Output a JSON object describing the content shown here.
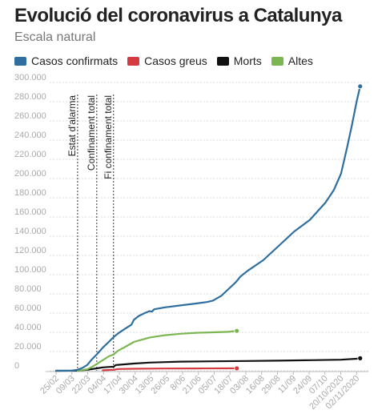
{
  "title": "Evolució del coronavirus a Catalunya",
  "subtitle": "Escala natural",
  "colors": {
    "confirmats": "#2e6fa0",
    "greus": "#d43a3f",
    "morts": "#111111",
    "altes": "#7bb652",
    "grid": "#dddddd",
    "axis": "#bbbbbb"
  },
  "chart_data": {
    "type": "line",
    "title": "Evolució del coronavirus a Catalunya",
    "subtitle": "Escala natural",
    "ylim": [
      0,
      300000
    ],
    "grid": true,
    "legend_position": "top",
    "y_ticks": [
      "0",
      "20.000",
      "40.000",
      "60.000",
      "80.000",
      "100.000",
      "120.000",
      "140.000",
      "160.000",
      "180.000",
      "200.000",
      "220.000",
      "240.000",
      "260.000",
      "280.000",
      "300.000"
    ],
    "x_ticks": [
      "25/02",
      "09/03",
      "22/03",
      "04/04",
      "17/04",
      "30/04",
      "13/05",
      "26/05",
      "8/06",
      "21/06",
      "05/07",
      "18/07",
      "03/08",
      "16/08",
      "29/08",
      "11/09",
      "24/09",
      "07/10",
      "20/10/2020",
      "02/11/2020"
    ],
    "annotations": [
      {
        "label": "Estat d'alarma",
        "x": "14/03"
      },
      {
        "label": "Confinament total",
        "x": "30/03"
      },
      {
        "label": "Fi confinament total",
        "x": "13/04"
      }
    ],
    "series": [
      {
        "name": "Casos confirmats",
        "color": "#2e6fa0",
        "points": [
          [
            "25/02",
            0
          ],
          [
            "09/03",
            100
          ],
          [
            "14/03",
            1000
          ],
          [
            "18/03",
            3000
          ],
          [
            "22/03",
            6000
          ],
          [
            "26/03",
            12000
          ],
          [
            "30/03",
            17000
          ],
          [
            "04/04",
            24000
          ],
          [
            "09/04",
            30000
          ],
          [
            "13/04",
            35000
          ],
          [
            "17/04",
            39000
          ],
          [
            "23/04",
            44000
          ],
          [
            "28/04",
            48000
          ],
          [
            "30/04",
            53000
          ],
          [
            "04/05",
            57000
          ],
          [
            "09/05",
            60000
          ],
          [
            "13/05",
            62000
          ],
          [
            "15/05",
            61500
          ],
          [
            "17/05",
            64000
          ],
          [
            "26/05",
            66000
          ],
          [
            "08/06",
            68000
          ],
          [
            "21/06",
            70000
          ],
          [
            "30/06",
            71500
          ],
          [
            "05/07",
            73000
          ],
          [
            "12/07",
            78000
          ],
          [
            "18/07",
            85000
          ],
          [
            "24/07",
            92000
          ],
          [
            "28/07",
            98000
          ],
          [
            "03/08",
            104000
          ],
          [
            "16/08",
            115000
          ],
          [
            "29/08",
            130000
          ],
          [
            "11/09",
            145000
          ],
          [
            "24/09",
            157000
          ],
          [
            "07/10",
            175000
          ],
          [
            "14/10",
            188000
          ],
          [
            "20/10/2020",
            205000
          ],
          [
            "25/10",
            232000
          ],
          [
            "29/10",
            255000
          ],
          [
            "02/11/2020",
            280000
          ],
          [
            "05/11",
            296000
          ]
        ]
      },
      {
        "name": "Casos greus",
        "color": "#d43a3f",
        "points": [
          [
            "04/04",
            500
          ],
          [
            "13/04",
            1000
          ],
          [
            "17/04",
            1800
          ],
          [
            "30/04",
            2100
          ],
          [
            "26/05",
            2300
          ],
          [
            "21/06",
            2400
          ],
          [
            "18/07",
            2500
          ],
          [
            "25/07",
            2500
          ]
        ]
      },
      {
        "name": "Morts",
        "color": "#111111",
        "points": [
          [
            "25/02",
            0
          ],
          [
            "14/03",
            200
          ],
          [
            "22/03",
            1000
          ],
          [
            "30/03",
            2500
          ],
          [
            "04/04",
            3500
          ],
          [
            "10/04",
            4000
          ],
          [
            "13/04",
            4200
          ],
          [
            "15/04",
            6000
          ],
          [
            "17/04",
            6200
          ],
          [
            "30/04",
            7500
          ],
          [
            "13/05",
            8500
          ],
          [
            "26/05",
            9000
          ],
          [
            "08/06",
            9500
          ],
          [
            "05/07",
            9800
          ],
          [
            "03/08",
            10200
          ],
          [
            "29/08",
            10500
          ],
          [
            "24/09",
            11000
          ],
          [
            "20/10/2020",
            11500
          ],
          [
            "02/11/2020",
            12500
          ],
          [
            "05/11",
            13000
          ]
        ]
      },
      {
        "name": "Altes",
        "color": "#7bb652",
        "points": [
          [
            "14/03",
            0
          ],
          [
            "22/03",
            1500
          ],
          [
            "26/03",
            4000
          ],
          [
            "30/03",
            7000
          ],
          [
            "04/04",
            11000
          ],
          [
            "09/04",
            15000
          ],
          [
            "13/04",
            17000
          ],
          [
            "17/04",
            21000
          ],
          [
            "23/04",
            25000
          ],
          [
            "30/04",
            30000
          ],
          [
            "13/05",
            34500
          ],
          [
            "26/05",
            37000
          ],
          [
            "08/06",
            38500
          ],
          [
            "21/06",
            39500
          ],
          [
            "05/07",
            40000
          ],
          [
            "18/07",
            40500
          ],
          [
            "25/07",
            41500
          ]
        ]
      }
    ]
  }
}
